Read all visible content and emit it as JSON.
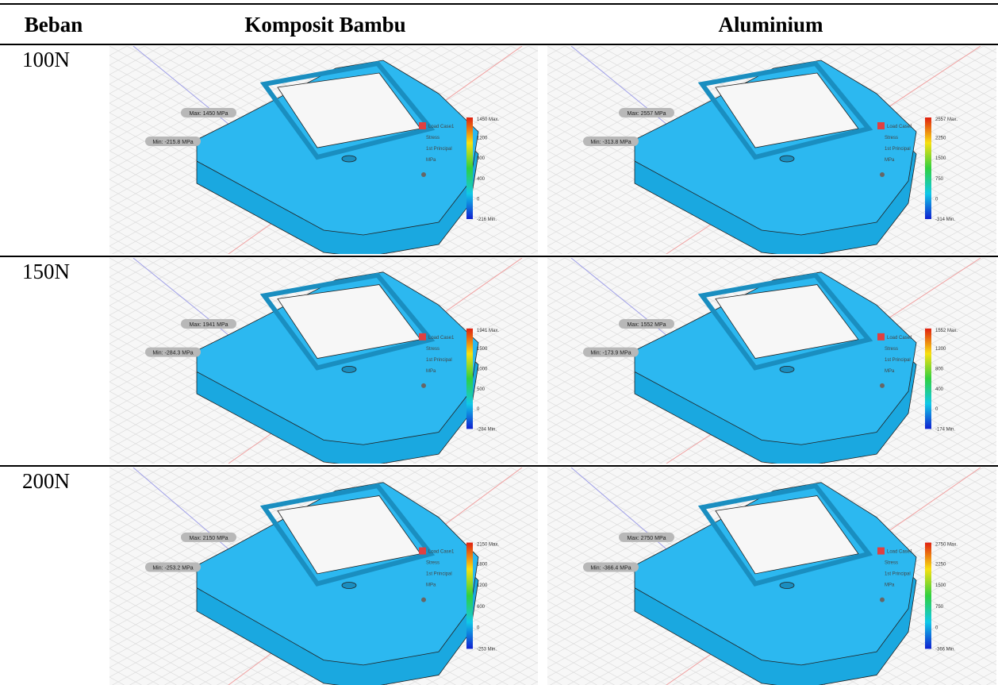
{
  "header": {
    "columns": [
      "Beban",
      "Komposit Bambu",
      "Aluminium"
    ]
  },
  "rows": [
    {
      "load": "100N",
      "cells": [
        {
          "max_label": "Max: 1450 MPa",
          "min_label": "Min: -215.8 MPa",
          "legend": {
            "case": "Load Case1",
            "result": "Stress",
            "component": "1st Principal",
            "unit": "MPa",
            "ticks": [
              "1450 Max.",
              "1200",
              "800",
              "400",
              "0",
              "-216 Min."
            ]
          }
        },
        {
          "max_label": "Max: 2557 MPa",
          "min_label": "Min: -313.8 MPa",
          "legend": {
            "case": "Load Case1",
            "result": "Stress",
            "component": "1st Principal",
            "unit": "MPa",
            "ticks": [
              "2557 Max.",
              "2250",
              "1500",
              "750",
              "0",
              "-314 Min."
            ]
          }
        }
      ]
    },
    {
      "load": "150N",
      "cells": [
        {
          "max_label": "Max: 1941 MPa",
          "min_label": "Min: -284.3 MPa",
          "legend": {
            "case": "Load Case1",
            "result": "Stress",
            "component": "1st Principal",
            "unit": "MPa",
            "ticks": [
              "1941 Max.",
              "1500",
              "1000",
              "500",
              "0",
              "-284 Min."
            ]
          }
        },
        {
          "max_label": "Max: 1552 MPa",
          "min_label": "Min: -173.9 MPa",
          "legend": {
            "case": "Load Case1",
            "result": "Stress",
            "component": "1st Principal",
            "unit": "MPa",
            "ticks": [
              "1552 Max.",
              "1200",
              "800",
              "400",
              "0",
              "-174 Min."
            ]
          }
        }
      ]
    },
    {
      "load": "200N",
      "cells": [
        {
          "max_label": "Max: 2150 MPa",
          "min_label": "Min: -253.2 MPa",
          "legend": {
            "case": "Load Case1",
            "result": "Stress",
            "component": "1st Principal",
            "unit": "MPa",
            "ticks": [
              "2150 Max.",
              "1800",
              "1200",
              "600",
              "0",
              "-253 Min."
            ]
          }
        },
        {
          "max_label": "Max: 2750 MPa",
          "min_label": "Min: -366.4 MPa",
          "legend": {
            "case": "Load Case1",
            "result": "Stress",
            "component": "1st Principal",
            "unit": "MPa",
            "ticks": [
              "2750 Max.",
              "2250",
              "1500",
              "750",
              "0",
              "-366 Min."
            ]
          }
        }
      ]
    }
  ]
}
